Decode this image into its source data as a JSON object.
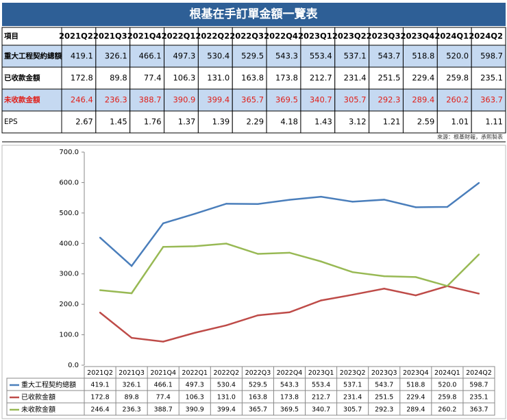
{
  "table": {
    "title": "根基在手訂單金額一覽表",
    "header": [
      "項目",
      "2021Q2",
      "2021Q3",
      "2021Q4",
      "2022Q1",
      "2022Q2",
      "2022Q3",
      "2022Q4",
      "2023Q1",
      "2023Q2",
      "2023Q3",
      "2023Q4",
      "2024Q1",
      "2024Q2"
    ],
    "rows": [
      [
        "重大工程契約總額",
        "419.1",
        "326.1",
        "466.1",
        "497.3",
        "530.4",
        "529.5",
        "543.3",
        "553.4",
        "537.1",
        "543.7",
        "518.8",
        "520.0",
        "598.7"
      ],
      [
        "已收款金額",
        "172.8",
        "89.8",
        "77.4",
        "106.3",
        "131.0",
        "163.8",
        "173.8",
        "212.7",
        "231.4",
        "251.5",
        "229.4",
        "259.8",
        "235.1"
      ],
      [
        "未收款金額",
        "246.4",
        "236.3",
        "388.7",
        "390.9",
        "399.4",
        "365.7",
        "369.5",
        "340.7",
        "305.7",
        "292.3",
        "289.4",
        "260.2",
        "363.7"
      ],
      [
        "EPS",
        "2.67",
        "1.45",
        "1.76",
        "1.37",
        "1.39",
        "2.29",
        "4.18",
        "1.43",
        "3.12",
        "1.21",
        "2.59",
        "1.01",
        "1.11"
      ]
    ],
    "source": "來源：根基財報，承熙製表"
  },
  "chart_data": {
    "type": "line",
    "categories": [
      "2021Q2",
      "2021Q3",
      "2021Q4",
      "2022Q1",
      "2022Q2",
      "2022Q3",
      "2022Q4",
      "2023Q1",
      "2023Q2",
      "2023Q3",
      "2023Q4",
      "2024Q1",
      "2024Q2"
    ],
    "ylim": [
      0,
      700
    ],
    "yticks": [
      {
        "value": 0,
        "label": "0.0"
      },
      {
        "value": 100,
        "label": "100.0"
      },
      {
        "value": 200,
        "label": "200.0"
      },
      {
        "value": 300,
        "label": "300.0"
      },
      {
        "value": 400,
        "label": "400.0"
      },
      {
        "value": 500,
        "label": "500.0"
      },
      {
        "value": 600,
        "label": "600.0"
      },
      {
        "value": 700,
        "label": "700.0"
      }
    ],
    "grid": false,
    "series": [
      {
        "name": "重大工程契約總額",
        "color": "#4a7ebb",
        "values": [
          419.1,
          326.1,
          466.1,
          497.3,
          530.4,
          529.5,
          543.3,
          553.4,
          537.1,
          543.7,
          518.8,
          520,
          598.7
        ],
        "value_labels": [
          "419.1",
          "326.1",
          "466.1",
          "497.3",
          "530.4",
          "529.5",
          "543.3",
          "553.4",
          "537.1",
          "543.7",
          "518.8",
          "520.0",
          "598.7"
        ]
      },
      {
        "name": "已收款金額",
        "color": "#be4b48",
        "values": [
          172.8,
          89.8,
          77.4,
          106.3,
          131,
          163.8,
          173.8,
          212.7,
          231.4,
          251.5,
          229.4,
          259.8,
          235.1
        ],
        "value_labels": [
          "172.8",
          "89.8",
          "77.4",
          "106.3",
          "131.0",
          "163.8",
          "173.8",
          "212.7",
          "231.4",
          "251.5",
          "229.4",
          "259.8",
          "235.1"
        ]
      },
      {
        "name": "未收款金額",
        "color": "#98b954",
        "values": [
          246.4,
          236.3,
          388.7,
          390.9,
          399.4,
          365.7,
          369.5,
          340.7,
          305.7,
          292.3,
          289.4,
          260.2,
          363.7
        ],
        "value_labels": [
          "246.4",
          "236.3",
          "388.7",
          "390.9",
          "399.4",
          "365.7",
          "369.5",
          "340.7",
          "305.7",
          "292.3",
          "289.4",
          "260.2",
          "363.7"
        ]
      }
    ]
  }
}
